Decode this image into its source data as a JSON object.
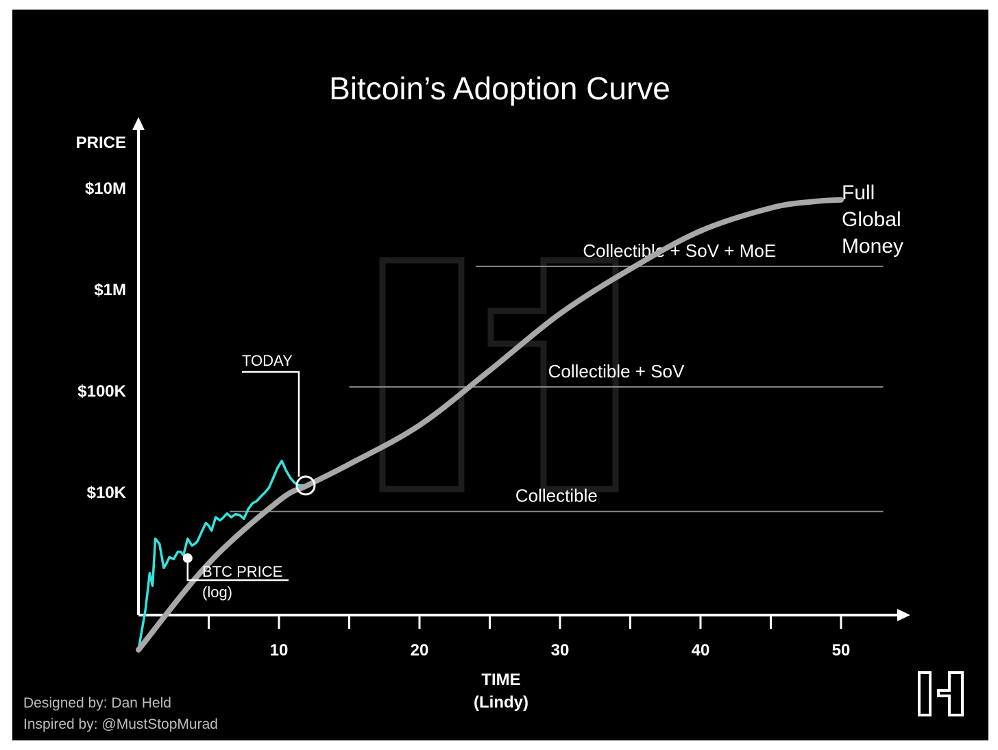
{
  "chart_data": {
    "type": "line",
    "title": "Bitcoin’s Adoption Curve",
    "ylabel": "PRICE",
    "xlabel_line1": "TIME",
    "xlabel_line2": "(Lindy)",
    "y_scale": "log",
    "x_ticks": [
      10,
      20,
      30,
      40,
      50
    ],
    "x_minor_ticks": [
      5,
      15,
      25,
      35,
      45
    ],
    "xlim": [
      0,
      54
    ],
    "y_ticks": [
      {
        "value": 10000,
        "label": "$10K"
      },
      {
        "value": 100000,
        "label": "$100K"
      },
      {
        "value": 1000000,
        "label": "$1M"
      },
      {
        "value": 10000000,
        "label": "$10M"
      }
    ],
    "grid": false,
    "series": [
      {
        "name": "BTC PRICE",
        "color": "#2ee6e0",
        "points": [
          [
            0,
            280
          ],
          [
            0.5,
            700
          ],
          [
            0.8,
            1600
          ],
          [
            1.0,
            1200
          ],
          [
            1.2,
            3500
          ],
          [
            1.5,
            3100
          ],
          [
            1.8,
            1800
          ],
          [
            2.0,
            2000
          ],
          [
            2.2,
            2300
          ],
          [
            2.5,
            2200
          ],
          [
            2.8,
            2600
          ],
          [
            3.0,
            2600
          ],
          [
            3.2,
            2400
          ],
          [
            3.5,
            3500
          ],
          [
            3.8,
            3000
          ],
          [
            4.0,
            3100
          ],
          [
            4.2,
            3300
          ],
          [
            4.5,
            4100
          ],
          [
            4.8,
            5000
          ],
          [
            5.0,
            4700
          ],
          [
            5.2,
            4200
          ],
          [
            5.5,
            5700
          ],
          [
            5.8,
            5300
          ],
          [
            6.0,
            5600
          ],
          [
            6.3,
            6200
          ],
          [
            6.6,
            5700
          ],
          [
            6.9,
            6100
          ],
          [
            7.2,
            6000
          ],
          [
            7.5,
            5500
          ],
          [
            7.8,
            6800
          ],
          [
            8.1,
            7800
          ],
          [
            8.4,
            8200
          ],
          [
            8.7,
            9100
          ],
          [
            9.0,
            10000
          ],
          [
            9.3,
            11200
          ],
          [
            9.6,
            14000
          ],
          [
            9.9,
            17500
          ],
          [
            10.2,
            20500
          ],
          [
            10.5,
            16500
          ],
          [
            10.8,
            14000
          ],
          [
            11.1,
            12500
          ],
          [
            11.4,
            11800
          ],
          [
            11.7,
            11700
          ],
          [
            11.9,
            11700
          ]
        ]
      },
      {
        "name": "Adoption Curve",
        "color": "#a8a8a8",
        "points": [
          [
            0,
            280
          ],
          [
            5,
            2000
          ],
          [
            10,
            8300
          ],
          [
            12,
            11700
          ],
          [
            15,
            19000
          ],
          [
            20,
            46000
          ],
          [
            25,
            160000
          ],
          [
            30,
            580000
          ],
          [
            35,
            1600000
          ],
          [
            40,
            3800000
          ],
          [
            45,
            6400000
          ],
          [
            48,
            7400000
          ],
          [
            50,
            7700000
          ]
        ]
      }
    ],
    "thresholds": [
      {
        "label": "Collectible",
        "value": 6500,
        "x_start": 6.5,
        "x_end": 53
      },
      {
        "label": "Collectible + SoV",
        "value": 110000,
        "x_start": 15,
        "x_end": 53
      },
      {
        "label": "Collectible + SoV + MoE",
        "value": 1700000,
        "x_start": 24,
        "x_end": 53
      }
    ],
    "annotations": {
      "today": {
        "label": "TODAY",
        "x": 11.9,
        "y": 11700
      },
      "btc_price_line1": "BTC PRICE",
      "btc_price_line2": "(log)",
      "btc_price_point": {
        "x": 3.5,
        "y": 2250
      },
      "end_line1": "Full",
      "end_line2": "Global",
      "end_line3": "Money"
    }
  },
  "credits": {
    "designed_by": "Designed by: Dan Held",
    "inspired_by": "Inspired by: @MustStopMurad"
  },
  "colors": {
    "background": "#000000",
    "axis": "#ffffff",
    "curve": "#a8a8a8",
    "btc": "#2ee6e0",
    "threshold": "#8a8a8a",
    "watermark": "#1d1d1d",
    "credits": "#bdbdbd"
  }
}
